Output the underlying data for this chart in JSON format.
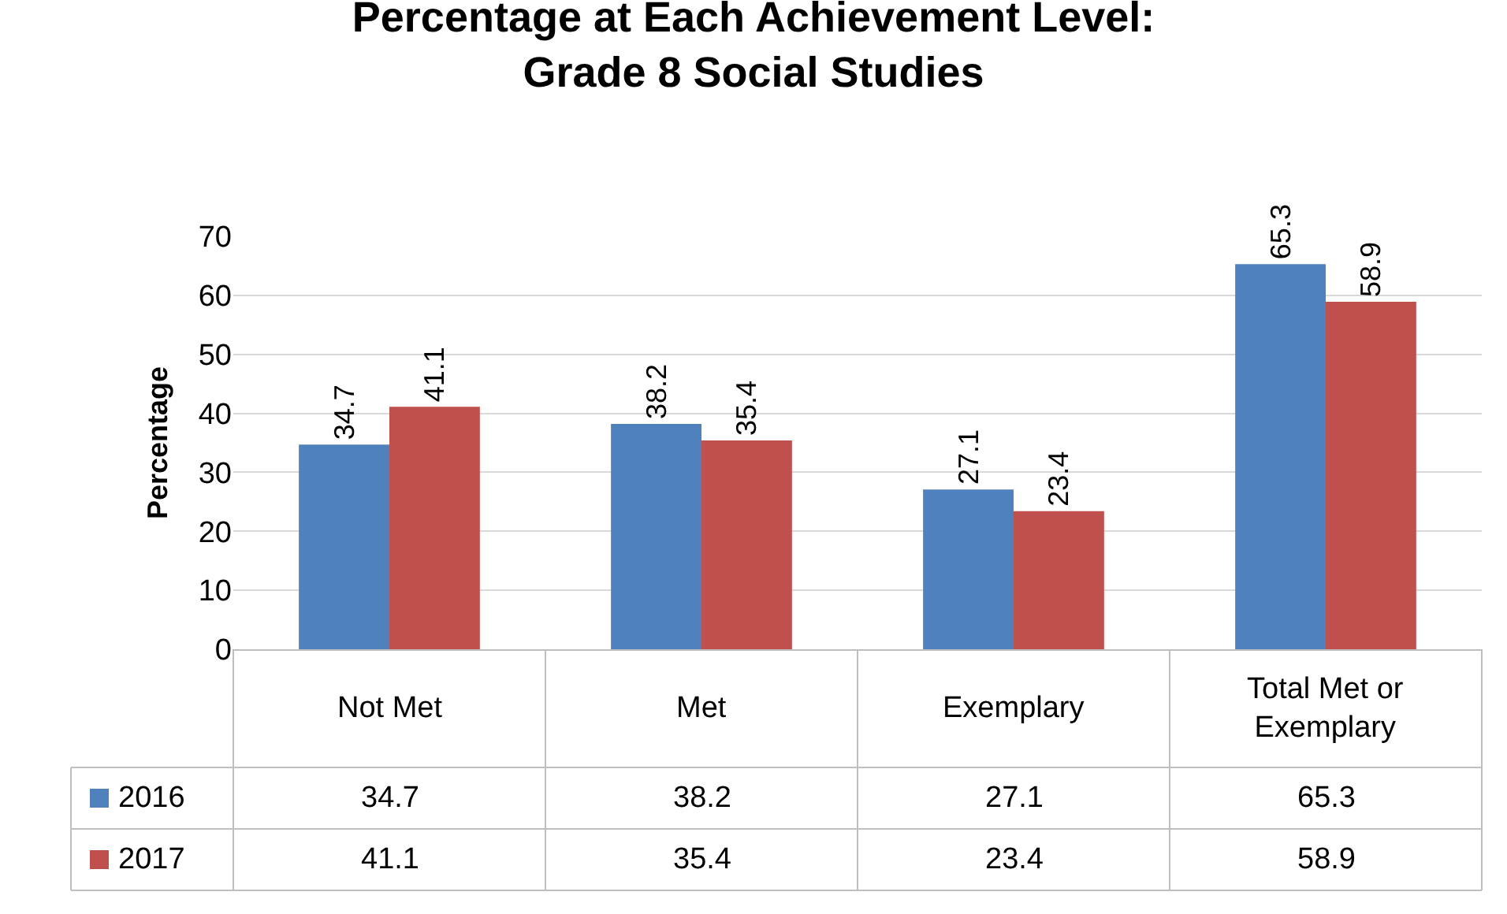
{
  "chart_data": {
    "type": "bar",
    "title": "Percentage at Each Achievement Level:\nGrade 8 Social Studies",
    "ylabel": "Percentage",
    "categories": [
      "Not Met",
      "Met",
      "Exemplary",
      "Total Met or Exemplary"
    ],
    "series": [
      {
        "name": "2016",
        "color": "#4f81bd",
        "values": [
          34.7,
          38.2,
          27.1,
          65.3
        ],
        "value_labels": [
          "34.7",
          "38.2",
          "27.1",
          "65.3"
        ]
      },
      {
        "name": "2017",
        "color": "#c0504d",
        "values": [
          41.1,
          35.4,
          23.4,
          58.9
        ],
        "value_labels": [
          "41.1",
          "35.4",
          "23.4",
          "58.9"
        ]
      }
    ],
    "ylim": [
      0,
      70
    ],
    "yticks": [
      0,
      10,
      20,
      30,
      40,
      50,
      60,
      70
    ],
    "grid": "y",
    "legend": "bottom",
    "annotations": [
      "34.7",
      "38.2",
      "27.1",
      "65.3",
      "41.1",
      "35.4",
      "23.4",
      "58.9"
    ]
  }
}
